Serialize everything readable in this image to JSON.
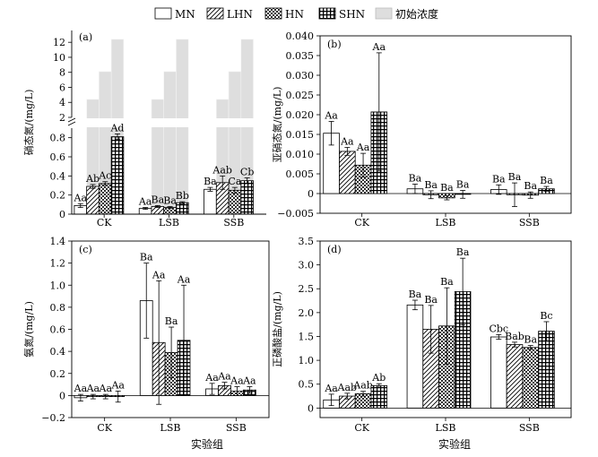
{
  "legend": {
    "items": [
      {
        "label": "MN",
        "pattern": "white"
      },
      {
        "label": "LHN",
        "pattern": "hatch"
      },
      {
        "label": "HN",
        "pattern": "check"
      },
      {
        "label": "SHN",
        "pattern": "grid"
      },
      {
        "label": "初始浓度",
        "pattern": "gray"
      }
    ]
  },
  "colors": {
    "frame": "#000000",
    "initial_bar": "#dedede",
    "initial_edge": "#f4f4f4"
  },
  "xlabel": "实验组",
  "chart_data": [
    {
      "type": "bar",
      "panel": "(a)",
      "ylabel": "硝态氮/(mg/L)",
      "categories": [
        "CK",
        "LSB",
        "SSB"
      ],
      "series_names": [
        "MN",
        "LHN",
        "HN",
        "SHN"
      ],
      "ylim": [
        0,
        12.5
      ],
      "broken_axis": {
        "lower": [
          0,
          0.9
        ],
        "upper": [
          2,
          12.5
        ]
      },
      "yticks": [
        0,
        0.2,
        0.4,
        0.6,
        0.8,
        2,
        4,
        6,
        8,
        10,
        12
      ],
      "values": [
        [
          0.09,
          0.29,
          0.32,
          0.81
        ],
        [
          0.06,
          0.08,
          0.07,
          0.12
        ],
        [
          0.26,
          0.33,
          0.25,
          0.35
        ]
      ],
      "errors": [
        [
          0.02,
          0.02,
          0.02,
          0.03
        ],
        [
          0.01,
          0.01,
          0.01,
          0.01
        ],
        [
          0.02,
          0.07,
          0.03,
          0.03
        ]
      ],
      "labels": [
        [
          "Aa",
          "Ab",
          "Ac",
          "Ad"
        ],
        [
          "Aa",
          "Ba",
          "Ba",
          "Bb"
        ],
        [
          "Ba",
          "Aab",
          "Ca",
          "Cb"
        ]
      ],
      "initial": [
        [
          0,
          4.4,
          8.1,
          12.4
        ],
        [
          0,
          4.4,
          8.1,
          12.4
        ],
        [
          0,
          4.4,
          8.1,
          12.4
        ]
      ]
    },
    {
      "type": "bar",
      "panel": "(b)",
      "ylabel": "亚硝态氮/(mg/L)",
      "categories": [
        "CK",
        "LSB",
        "SSB"
      ],
      "series_names": [
        "MN",
        "LHN",
        "HN",
        "SHN"
      ],
      "ylim": [
        -0.005,
        0.04
      ],
      "yticks": [
        -0.005,
        0,
        0.005,
        0.01,
        0.015,
        0.02,
        0.025,
        0.03,
        0.035,
        0.04
      ],
      "ytick_labels": [
        "−0.005",
        "0",
        "0.005",
        "0.010",
        "0.015",
        "0.020",
        "0.025",
        "0.030",
        "0.035",
        "0.040"
      ],
      "values": [
        [
          0.0153,
          0.0107,
          0.0072,
          0.0207
        ],
        [
          0.0012,
          -0.0003,
          -0.0011,
          -0.0002
        ],
        [
          0.001,
          -0.0003,
          -0.0004,
          0.0012
        ]
      ],
      "errors": [
        [
          0.003,
          0.001,
          0.003,
          0.015
        ],
        [
          0.0012,
          0.001,
          0.0005,
          0.001
        ],
        [
          0.0012,
          0.003,
          0.0008,
          0.0006
        ]
      ],
      "labels": [
        [
          "Aa",
          "Aa",
          "Aa",
          "Aa"
        ],
        [
          "Ba",
          "Ba",
          "Ba",
          "Ba"
        ],
        [
          "Ba",
          "Ba",
          "Ba",
          "Ba"
        ]
      ]
    },
    {
      "type": "bar",
      "panel": "(c)",
      "ylabel": "氨氮/(mg/L)",
      "categories": [
        "CK",
        "LSB",
        "SSB"
      ],
      "series_names": [
        "MN",
        "LHN",
        "HN",
        "SHN"
      ],
      "ylim": [
        -0.2,
        1.4
      ],
      "yticks": [
        -0.2,
        0,
        0.2,
        0.4,
        0.6,
        0.8,
        1.0,
        1.2,
        1.4
      ],
      "ytick_labels": [
        "−0.2",
        "0",
        "0.2",
        "0.4",
        "0.6",
        "0.8",
        "1.0",
        "1.2",
        "1.4"
      ],
      "values": [
        [
          -0.02,
          -0.01,
          -0.01,
          -0.01
        ],
        [
          0.86,
          0.48,
          0.39,
          0.5
        ],
        [
          0.06,
          0.09,
          0.04,
          0.05
        ]
      ],
      "errors": [
        [
          0.03,
          0.02,
          0.02,
          0.05
        ],
        [
          0.34,
          0.56,
          0.23,
          0.5
        ],
        [
          0.05,
          0.03,
          0.04,
          0.03
        ]
      ],
      "labels": [
        [
          "Aa",
          "Aa",
          "Aa",
          "Aa"
        ],
        [
          "Ba",
          "Aa",
          "Ba",
          "Aa"
        ],
        [
          "Aa",
          "Aa",
          "Aa",
          "Aa"
        ]
      ]
    },
    {
      "type": "bar",
      "panel": "(d)",
      "ylabel": "正磷酸盐/(mg/L)",
      "categories": [
        "CK",
        "LSB",
        "SSB"
      ],
      "series_names": [
        "MN",
        "LHN",
        "HN",
        "SHN"
      ],
      "ylim": [
        -0.2,
        3.5
      ],
      "yticks": [
        0,
        0.5,
        1.0,
        1.5,
        2.0,
        2.5,
        3.0,
        3.5
      ],
      "ytick_labels": [
        "0",
        "0.5",
        "1.0",
        "1.5",
        "2.0",
        "2.5",
        "3.0",
        "3.5"
      ],
      "values": [
        [
          0.17,
          0.25,
          0.3,
          0.47
        ],
        [
          2.16,
          1.65,
          1.72,
          2.44
        ],
        [
          1.49,
          1.33,
          1.27,
          1.61
        ]
      ],
      "errors": [
        [
          0.12,
          0.06,
          0.05,
          0.04
        ],
        [
          0.1,
          0.5,
          0.8,
          0.7
        ],
        [
          0.05,
          0.05,
          0.04,
          0.2
        ]
      ],
      "labels": [
        [
          "Aa",
          "Aab",
          "Aab",
          "Ab"
        ],
        [
          "Ba",
          "Ba",
          "Ba",
          "Ba"
        ],
        [
          "Cbc",
          "Bab",
          "Ba",
          "Bc"
        ]
      ]
    }
  ]
}
